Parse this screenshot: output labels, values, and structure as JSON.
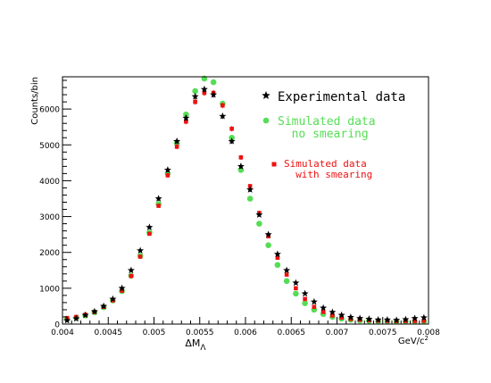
{
  "chart_data": {
    "type": "scatter",
    "ylabel": "Counts/bin",
    "xlabel": "ΔM",
    "xlabel_subscript": "Λ",
    "x_unit_label": "GeV/c",
    "x_unit_superscript": "2",
    "xlim": [
      0.004,
      0.008
    ],
    "ylim": [
      0,
      6900
    ],
    "x_ticks": [
      0.004,
      0.0045,
      0.005,
      0.0055,
      0.006,
      0.0065,
      0.007,
      0.0075,
      0.008
    ],
    "x_tick_labels": [
      "0.004",
      "0.0045",
      "0.005",
      "0.0055",
      "0.006",
      "0.0065",
      "0.007",
      "0.0075",
      "0.008"
    ],
    "y_ticks": [
      0,
      1000,
      2000,
      3000,
      4000,
      5000,
      6000
    ],
    "y_tick_labels": [
      "0",
      "1000",
      "2000",
      "3000",
      "4000",
      "5000",
      "6000"
    ],
    "grid": false,
    "legend_position": "top-right",
    "series": [
      {
        "name": "Experimental data",
        "marker": "star",
        "color": "#000000",
        "x": [
          0.00405,
          0.00415,
          0.00425,
          0.00435,
          0.00445,
          0.00455,
          0.00465,
          0.00475,
          0.00485,
          0.00495,
          0.00505,
          0.00515,
          0.00525,
          0.00535,
          0.00545,
          0.00555,
          0.00565,
          0.00575,
          0.00585,
          0.00595,
          0.00605,
          0.00615,
          0.00625,
          0.00635,
          0.00645,
          0.00655,
          0.00665,
          0.00675,
          0.00685,
          0.00695,
          0.00705,
          0.00715,
          0.00725,
          0.00735,
          0.00745,
          0.00755,
          0.00765,
          0.00775,
          0.00785,
          0.00795
        ],
        "y": [
          100,
          150,
          250,
          350,
          500,
          700,
          1000,
          1500,
          2050,
          2700,
          3500,
          4300,
          5100,
          5750,
          6350,
          6550,
          6400,
          5800,
          5100,
          4400,
          3750,
          3050,
          2500,
          1950,
          1500,
          1150,
          850,
          620,
          450,
          330,
          250,
          190,
          160,
          140,
          120,
          120,
          110,
          130,
          160,
          180
        ]
      },
      {
        "name": "Simulated data",
        "name_line2": "no smearing",
        "marker": "circle",
        "color": "#55dd55",
        "x": [
          0.00405,
          0.00415,
          0.00425,
          0.00435,
          0.00445,
          0.00455,
          0.00465,
          0.00475,
          0.00485,
          0.00495,
          0.00505,
          0.00515,
          0.00525,
          0.00535,
          0.00545,
          0.00555,
          0.00565,
          0.00575,
          0.00585,
          0.00595,
          0.00605,
          0.00615,
          0.00625,
          0.00635,
          0.00645,
          0.00655,
          0.00665,
          0.00675,
          0.00685,
          0.00695,
          0.00705,
          0.00715,
          0.00725,
          0.00735,
          0.00745,
          0.00755,
          0.00765,
          0.00775,
          0.00785,
          0.00795
        ],
        "y": [
          140,
          180,
          240,
          330,
          470,
          660,
          920,
          1350,
          1900,
          2550,
          3350,
          4200,
          5050,
          5850,
          6500,
          6850,
          6750,
          6150,
          5200,
          4300,
          3500,
          2800,
          2200,
          1650,
          1200,
          850,
          580,
          400,
          280,
          200,
          150,
          120,
          100,
          90,
          80,
          80,
          70,
          70,
          70,
          70
        ]
      },
      {
        "name": "Simulated data",
        "name_line2": "with smearing",
        "marker": "square",
        "color": "#ee1111",
        "x": [
          0.00405,
          0.00415,
          0.00425,
          0.00435,
          0.00445,
          0.00455,
          0.00465,
          0.00475,
          0.00485,
          0.00495,
          0.00505,
          0.00515,
          0.00525,
          0.00535,
          0.00545,
          0.00555,
          0.00565,
          0.00575,
          0.00585,
          0.00595,
          0.00605,
          0.00615,
          0.00625,
          0.00635,
          0.00645,
          0.00655,
          0.00665,
          0.00675,
          0.00685,
          0.00695,
          0.00705,
          0.00715,
          0.00725,
          0.00735,
          0.00745,
          0.00755,
          0.00765,
          0.00775,
          0.00785,
          0.00795
        ],
        "y": [
          170,
          200,
          260,
          340,
          480,
          660,
          930,
          1340,
          1880,
          2520,
          3300,
          4150,
          4950,
          5650,
          6200,
          6450,
          6450,
          6100,
          5450,
          4650,
          3850,
          3100,
          2450,
          1850,
          1380,
          1000,
          700,
          480,
          340,
          240,
          180,
          140,
          120,
          105,
          95,
          90,
          85,
          85,
          85,
          90
        ]
      }
    ]
  }
}
